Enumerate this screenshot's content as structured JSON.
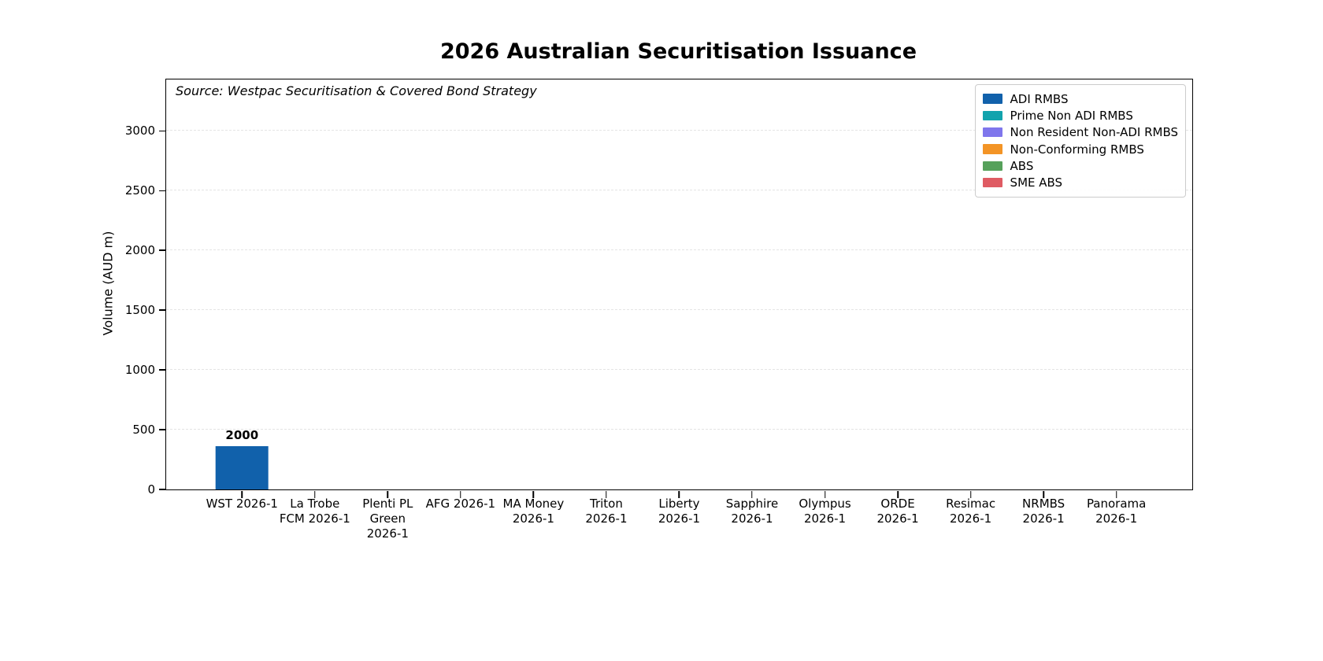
{
  "chart_data": {
    "type": "bar",
    "title": "2026 Australian Securitisation Issuance",
    "source_note": "Source: Westpac Securitisation & Covered Bond Strategy",
    "xlabel": "",
    "ylabel": "Volume (AUD m)",
    "yticks": [
      0,
      500,
      1000,
      1500,
      2000,
      2500,
      3000
    ],
    "ylim": [
      0,
      3430
    ],
    "grid": "horizontal-dashed",
    "background": "#ffffff",
    "categories": [
      "WST 2026-1",
      "La Trobe\nFCM 2026-1",
      "Plenti PL\nGreen\n2026-1",
      "AFG 2026-1",
      "MA Money\n2026-1",
      "Triton\n2026-1",
      "Liberty\n2026-1",
      "Sapphire\n2026-1",
      "Olympus\n2026-1",
      "ORDE\n2026-1",
      "Resimac\n2026-1",
      "NRMBS\n2026-1",
      "Panorama\n2026-1"
    ],
    "legend": {
      "position": "upper-right",
      "entries": [
        {
          "label": "ADI RMBS",
          "color": "#1161ab"
        },
        {
          "label": "Prime Non ADI RMBS",
          "color": "#12a3ad"
        },
        {
          "label": "Non Resident Non-ADI RMBS",
          "color": "#7f76ec"
        },
        {
          "label": "Non-Conforming RMBS",
          "color": "#f39426"
        },
        {
          "label": "ABS",
          "color": "#56a15b"
        },
        {
          "label": "SME ABS",
          "color": "#df5b63"
        }
      ]
    },
    "series": [
      {
        "name": "ADI RMBS",
        "color": "#1161ab",
        "values": [
          2000,
          0,
          0,
          0,
          0,
          0,
          0,
          0,
          0,
          0,
          0,
          0,
          0
        ]
      },
      {
        "name": "Prime Non ADI RMBS",
        "color": "#12a3ad",
        "values": [
          0,
          0,
          0,
          0,
          0,
          0,
          0,
          0,
          0,
          0,
          0,
          0,
          0
        ]
      },
      {
        "name": "Non Resident Non-ADI RMBS",
        "color": "#7f76ec",
        "values": [
          0,
          0,
          0,
          0,
          0,
          0,
          0,
          0,
          0,
          0,
          0,
          0,
          0
        ]
      },
      {
        "name": "Non-Conforming RMBS",
        "color": "#f39426",
        "values": [
          0,
          0,
          0,
          0,
          0,
          0,
          0,
          0,
          0,
          0,
          0,
          0,
          0
        ]
      },
      {
        "name": "ABS",
        "color": "#56a15b",
        "values": [
          0,
          0,
          0,
          0,
          0,
          0,
          0,
          0,
          0,
          0,
          0,
          0,
          0
        ]
      },
      {
        "name": "SME ABS",
        "color": "#df5b63",
        "values": [
          0,
          0,
          0,
          0,
          0,
          0,
          0,
          0,
          0,
          0,
          0,
          0,
          0
        ]
      }
    ],
    "bars": [
      {
        "category_index": 0,
        "series": "ADI RMBS",
        "color": "#1161ab",
        "value_label": "2000",
        "rendered_axis_height": 360
      }
    ]
  }
}
